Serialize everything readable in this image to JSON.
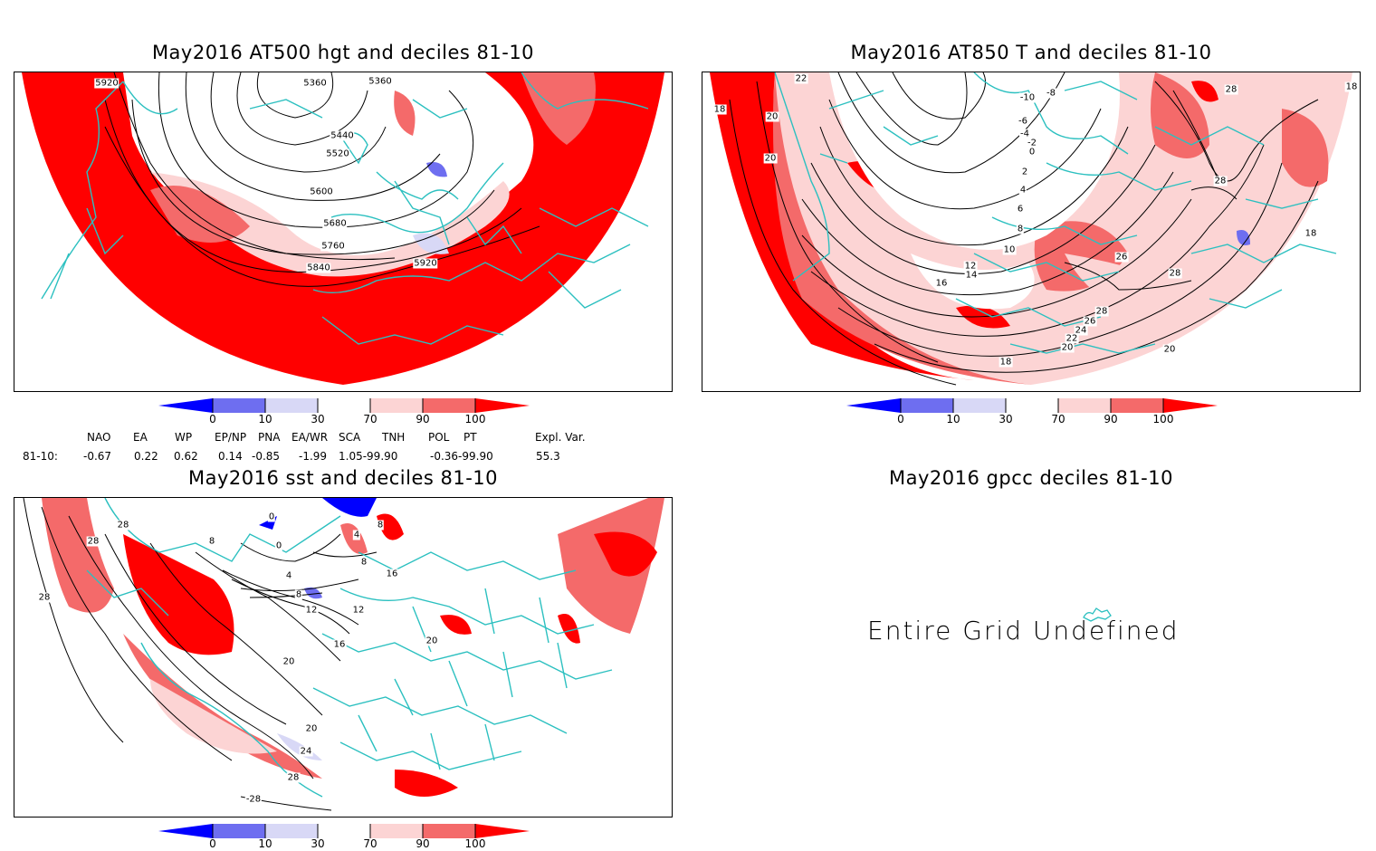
{
  "panels": {
    "hgt": {
      "title": "May2016 AT500 hgt and deciles 81-10",
      "contour_labels": [
        "5920",
        "5360",
        "5360",
        "5440",
        "5520",
        "5600",
        "5680",
        "5760",
        "5840",
        "5920"
      ]
    },
    "t850": {
      "title": "May2016 AT850 T and deciles 81-10",
      "contour_labels": [
        "18",
        "22",
        "18",
        "20",
        "20",
        "-10",
        "-8",
        "-6",
        "-4",
        "-2",
        "0",
        "2",
        "4",
        "6",
        "8",
        "10",
        "12",
        "14",
        "16",
        "28",
        "28",
        "26",
        "28",
        "28",
        "26",
        "24",
        "22",
        "20",
        "18",
        "20",
        "18"
      ]
    },
    "sst": {
      "title": "May2016 sst and deciles 81-10",
      "contour_labels": [
        "28",
        "28",
        "28",
        "8",
        "0",
        "0",
        "4",
        "8",
        "12",
        "12",
        "16",
        "20",
        "20",
        "24",
        "28",
        "-28",
        "4",
        "8",
        "8",
        "16",
        "20"
      ]
    },
    "gpcc": {
      "title": "May2016 gpcc deciles 81-10",
      "message": "Entire Grid Undefined"
    }
  },
  "colorbar": {
    "labels": [
      "0",
      "10",
      "30",
      "70",
      "90",
      "100"
    ],
    "colors": [
      "#0000ff",
      "#6e6ef0",
      "#d8d8f6",
      "#ffffff",
      "#fcd4d4",
      "#f46a6a",
      "#ff0000"
    ]
  },
  "teleconnections": {
    "headers": [
      "NAO",
      "EA",
      "WP",
      "EP/NP",
      "PNA",
      "EA/WR",
      "SCA",
      "TNH",
      "POL",
      "PT",
      "Expl. Var."
    ],
    "row_label": "81-10:",
    "values": [
      "-0.67",
      "0.22",
      "0.62",
      "0.14",
      "-0.85",
      "-1.99",
      "1.05-99.90",
      "-0.36-99.90",
      "55.3"
    ]
  },
  "colors": {
    "map_outline": "#2cc0c0",
    "strong_above": "#ff0000",
    "above": "#f46a6a",
    "slightly_above": "#fcd4d4",
    "below": "#6e6ef0",
    "much_below": "#0000ff"
  }
}
